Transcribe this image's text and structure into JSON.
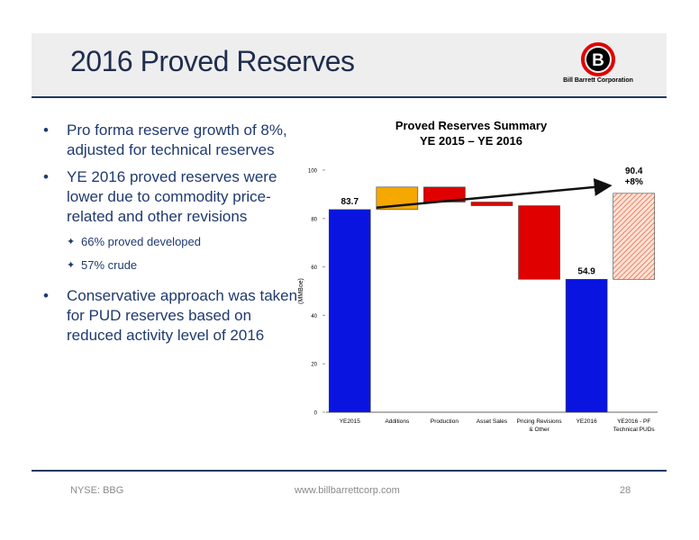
{
  "slide": {
    "title": "2016 Proved Reserves",
    "logo_text": "Bill Barrett Corporation",
    "logo_letter": "B"
  },
  "bullets": [
    {
      "text": "Pro forma reserve growth of 8%, adjusted for technical reserves"
    },
    {
      "text": "YE 2016 proved reserves were lower due to commodity price-related and other revisions",
      "subs": [
        "66% proved developed",
        "57% crude"
      ]
    },
    {
      "text": "Conservative approach was taken for PUD reserves based on reduced activity level of 2016"
    }
  ],
  "footer": {
    "ticker": "NYSE: BBG",
    "url": "www.billbarrettcorp.com",
    "page": "28"
  },
  "chart_data": {
    "type": "bar",
    "subtype": "waterfall",
    "title_lines": [
      "Proved Reserves Summary",
      "YE 2015 – YE 2016"
    ],
    "ylabel": "(MMBoe)",
    "ylim": [
      0,
      100
    ],
    "yticks": [
      0,
      20,
      40,
      60,
      80,
      100
    ],
    "categories": [
      "YE2015",
      "Additions",
      "Production",
      "Asset Sales",
      "Pricing Revisions & Other",
      "YE2016",
      "YE2016 - PF Technical PUDs"
    ],
    "category_label_lines": [
      [
        "YE2015"
      ],
      [
        "Additions"
      ],
      [
        "Production"
      ],
      [
        "Asset Sales"
      ],
      [
        "Pricing Revisions",
        "& Other"
      ],
      [
        "YE2016"
      ],
      [
        "YE2016 - PF",
        "Technical PUDs"
      ]
    ],
    "bars": [
      {
        "category": "YE2015",
        "base": 0,
        "top": 83.7,
        "kind": "total"
      },
      {
        "category": "Additions",
        "base": 83.7,
        "top": 93.0,
        "kind": "increase"
      },
      {
        "category": "Production",
        "base": 86.8,
        "top": 93.0,
        "kind": "decrease"
      },
      {
        "category": "Asset Sales",
        "base": 85.3,
        "top": 86.8,
        "kind": "decrease"
      },
      {
        "category": "Pricing Revisions & Other",
        "base": 54.9,
        "top": 85.3,
        "kind": "decrease"
      },
      {
        "category": "YE2016",
        "base": 0,
        "top": 54.9,
        "kind": "total"
      },
      {
        "category": "YE2016 - PF Technical PUDs",
        "base": 54.9,
        "top": 90.4,
        "kind": "pro_forma"
      }
    ],
    "data_labels": [
      {
        "category": "YE2015",
        "text": "83.7"
      },
      {
        "category": "YE2016",
        "text": "54.9"
      },
      {
        "category": "YE2016 - PF Technical PUDs",
        "text": "90.4",
        "sub": "+8%"
      }
    ],
    "colors": {
      "total": "#0a14e0",
      "increase": "#f5a800",
      "decrease": "#e00000",
      "pro_forma": "#f08060",
      "arrow": "#111111"
    },
    "grid": false
  }
}
